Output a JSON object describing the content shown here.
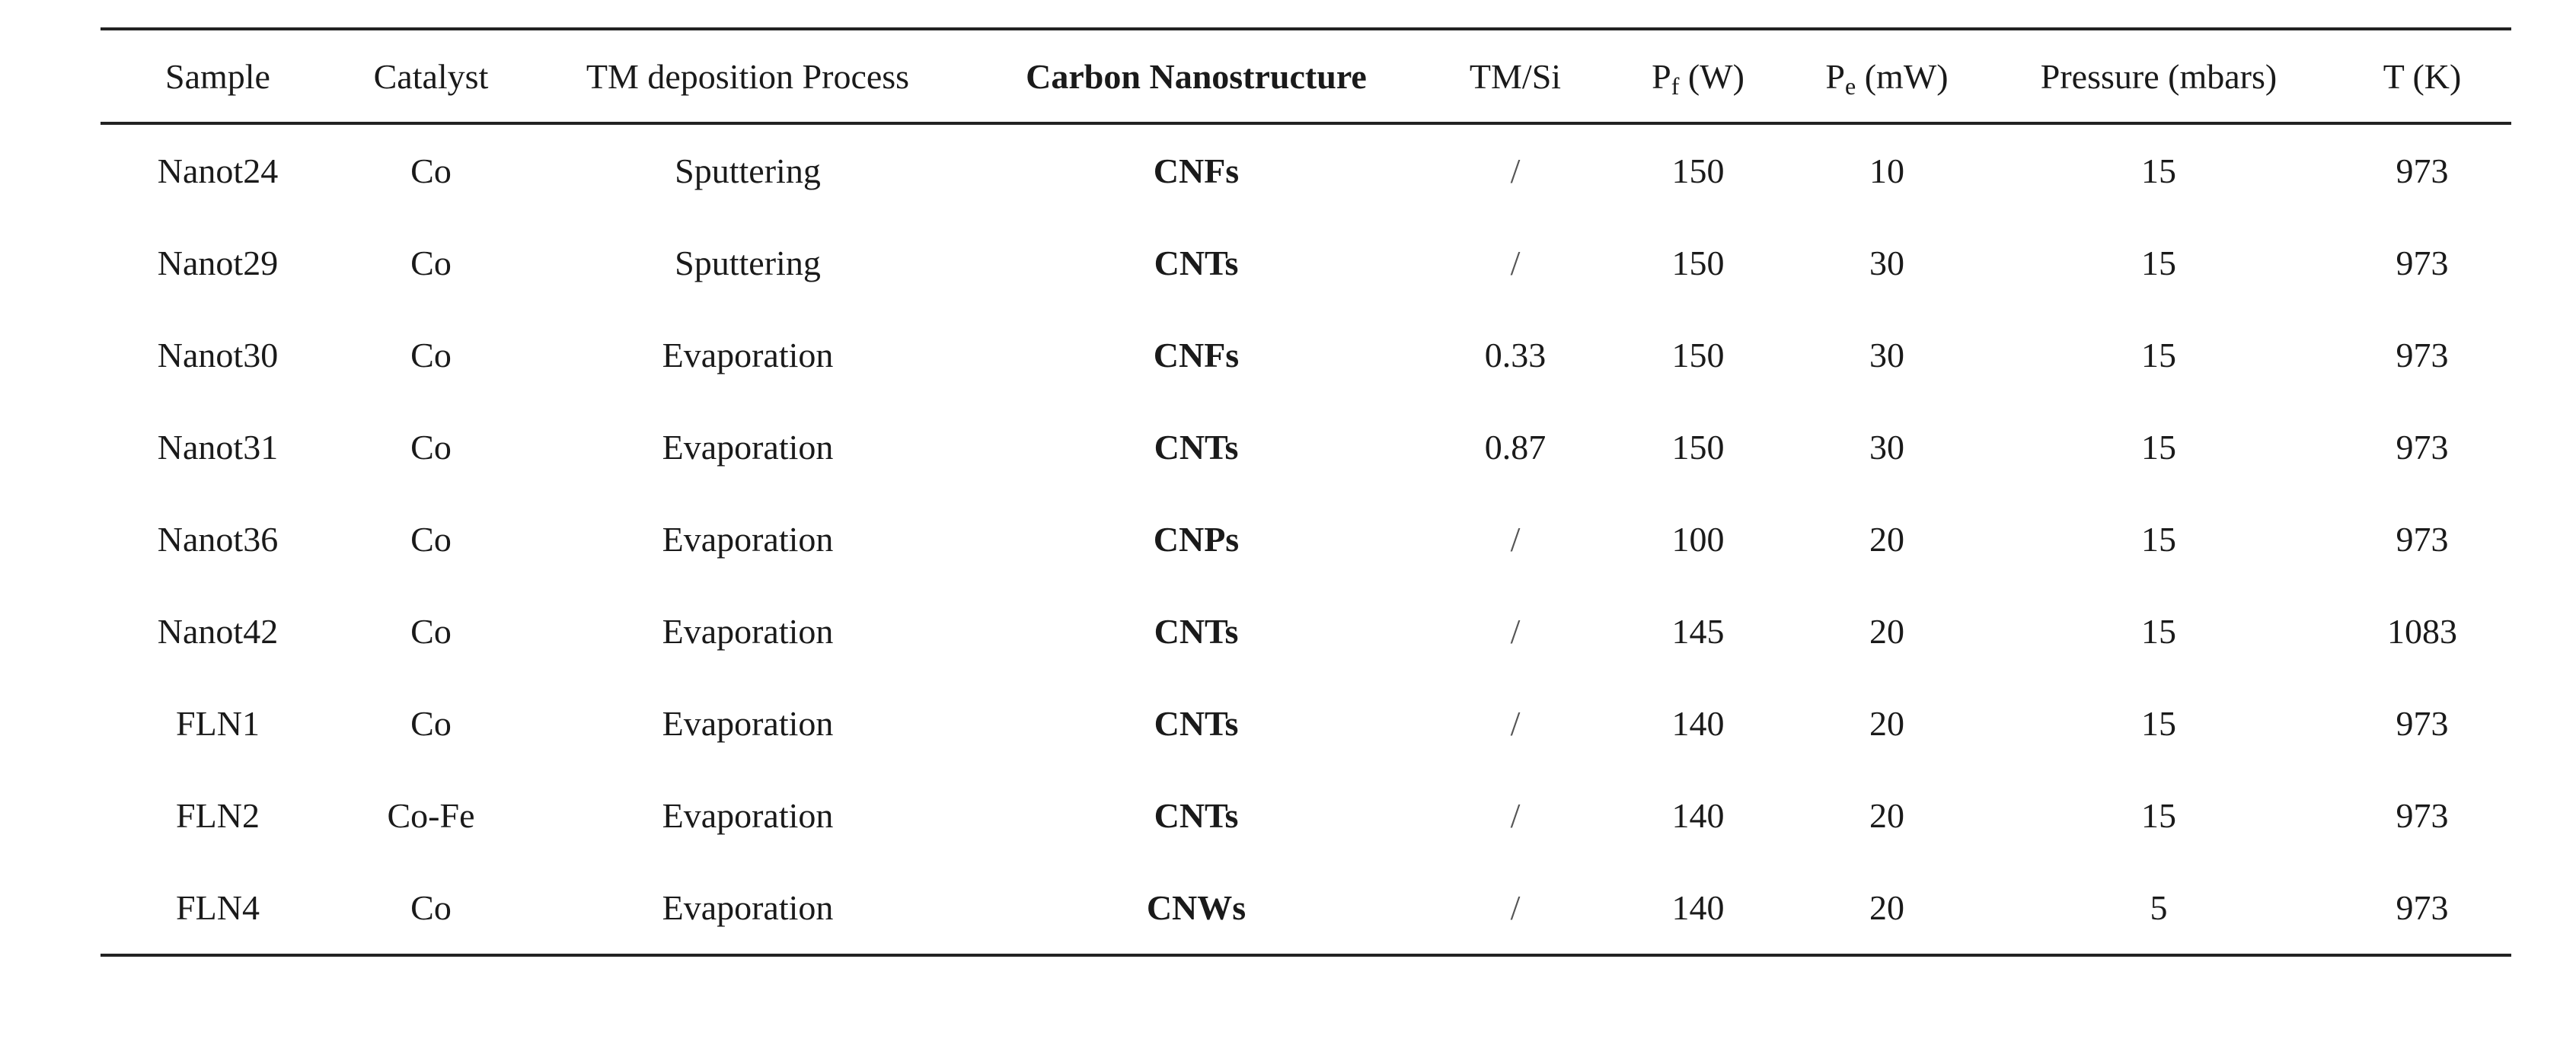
{
  "table": {
    "headers": {
      "sample": "Sample",
      "catalyst": "Catalyst",
      "tm_process": "TM deposition Process",
      "carbon": "Carbon Nanostructure",
      "tm_si": "TM/Si",
      "pf_main": "P",
      "pf_sub": "f",
      "pf_unit": " (W)",
      "pe_main": "P",
      "pe_sub": "e",
      "pe_unit": " (mW)",
      "pressure": "Pressure (mbars)",
      "temp": "T (K)"
    },
    "rows": [
      {
        "sample": "Nanot24",
        "catalyst": "Co",
        "process": "Sputtering",
        "carbon": "CNFs",
        "tm_si": "/",
        "pf": "150",
        "pe": "10",
        "pressure": "15",
        "t": "973"
      },
      {
        "sample": "Nanot29",
        "catalyst": "Co",
        "process": "Sputtering",
        "carbon": "CNTs",
        "tm_si": "/",
        "pf": "150",
        "pe": "30",
        "pressure": "15",
        "t": "973"
      },
      {
        "sample": "Nanot30",
        "catalyst": "Co",
        "process": "Evaporation",
        "carbon": "CNFs",
        "tm_si": "0.33",
        "pf": "150",
        "pe": "30",
        "pressure": "15",
        "t": "973"
      },
      {
        "sample": "Nanot31",
        "catalyst": "Co",
        "process": "Evaporation",
        "carbon": "CNTs",
        "tm_si": "0.87",
        "pf": "150",
        "pe": "30",
        "pressure": "15",
        "t": "973"
      },
      {
        "sample": "Nanot36",
        "catalyst": "Co",
        "process": "Evaporation",
        "carbon": "CNPs",
        "tm_si": "/",
        "pf": "100",
        "pe": "20",
        "pressure": "15",
        "t": "973"
      },
      {
        "sample": "Nanot42",
        "catalyst": "Co",
        "process": "Evaporation",
        "carbon": "CNTs",
        "tm_si": "/",
        "pf": "145",
        "pe": "20",
        "pressure": "15",
        "t": "1083"
      },
      {
        "sample": "FLN1",
        "catalyst": "Co",
        "process": "Evaporation",
        "carbon": "CNTs",
        "tm_si": "/",
        "pf": "140",
        "pe": "20",
        "pressure": "15",
        "t": "973"
      },
      {
        "sample": "FLN2",
        "catalyst": "Co-Fe",
        "process": "Evaporation",
        "carbon": "CNTs",
        "tm_si": "/",
        "pf": "140",
        "pe": "20",
        "pressure": "15",
        "t": "973"
      },
      {
        "sample": "FLN4",
        "catalyst": "Co",
        "process": "Evaporation",
        "carbon": "CNWs",
        "tm_si": "/",
        "pf": "140",
        "pe": "20",
        "pressure": "5",
        "t": "973"
      }
    ]
  }
}
